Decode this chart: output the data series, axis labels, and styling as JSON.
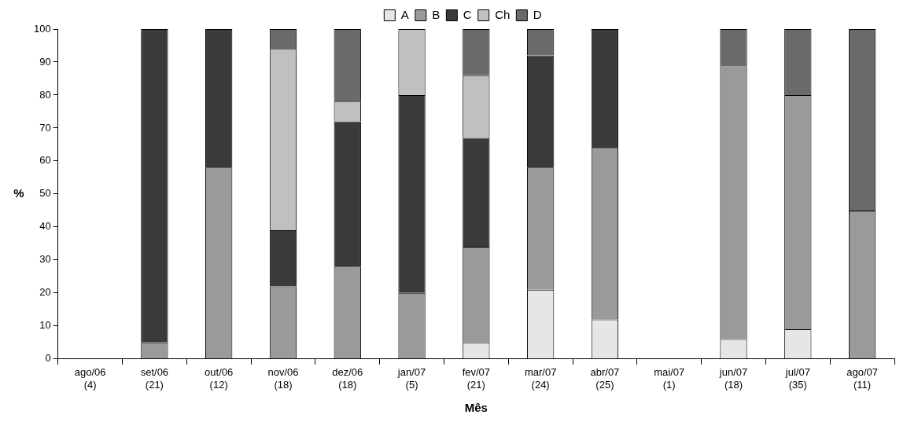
{
  "chart_data": {
    "type": "bar",
    "stacked": true,
    "xlabel": "Mês",
    "ylabel": "%",
    "categories": [
      "ago/06\n(4)",
      "set/06\n(21)",
      "out/06\n(12)",
      "nov/06\n(18)",
      "dez/06\n(18)",
      "jan/07\n(5)",
      "fev/07\n(21)",
      "mar/07\n(24)",
      "abr/07\n(25)",
      "mai/07\n(1)",
      "jun/07\n(18)",
      "jul/07\n(35)",
      "ago/07\n(11)"
    ],
    "series": [
      {
        "name": "A",
        "color": "#e6e6e6",
        "values": [
          0,
          0,
          0,
          0,
          0,
          0,
          5,
          21,
          12,
          0,
          6,
          9,
          0
        ]
      },
      {
        "name": "B",
        "color": "#9a9a9a",
        "values": [
          0,
          5,
          58,
          22,
          28,
          20,
          29,
          37,
          52,
          0,
          83,
          71,
          45
        ]
      },
      {
        "name": "C",
        "color": "#3a3a3a",
        "values": [
          0,
          95,
          42,
          17,
          44,
          60,
          33,
          34,
          36,
          0,
          0,
          0,
          0
        ]
      },
      {
        "name": "Ch",
        "color": "#c0c0c0",
        "values": [
          0,
          0,
          0,
          55,
          6,
          20,
          19,
          0,
          0,
          0,
          0,
          0,
          0
        ]
      },
      {
        "name": "D",
        "color": "#6a6a6a",
        "values": [
          0,
          0,
          0,
          6,
          22,
          0,
          14,
          8,
          0,
          0,
          11,
          20,
          55
        ]
      }
    ],
    "ylim": [
      0,
      100
    ],
    "yticks": [
      0,
      10,
      20,
      30,
      40,
      50,
      60,
      70,
      80,
      90,
      100
    ],
    "grid": false,
    "legend": "top"
  }
}
